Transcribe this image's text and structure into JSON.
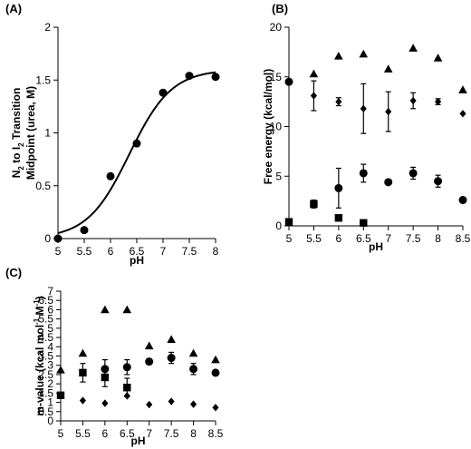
{
  "chart_data": [
    {
      "panel_label": "(A)",
      "type": "scatter",
      "xlabel": "pH",
      "ylabel_parts": [
        "N",
        "2",
        " to I",
        "2",
        " Transition"
      ],
      "ylabel_line2": "Midpoint (urea, M)",
      "xlim": [
        5,
        8
      ],
      "ylim": [
        0,
        2
      ],
      "xticks": [
        "5",
        "5.5",
        "6",
        "6.5",
        "7",
        "7.5",
        "8"
      ],
      "yticks": [
        "0",
        "0.5",
        "1",
        "1.5",
        "2"
      ],
      "series": [
        {
          "marker": "circle",
          "points": [
            [
              5,
              0.0
            ],
            [
              5.5,
              0.08
            ],
            [
              6,
              0.59
            ],
            [
              6.5,
              0.9
            ],
            [
              7,
              1.38
            ],
            [
              7.5,
              1.54
            ],
            [
              8,
              1.53
            ]
          ]
        }
      ],
      "fit_curve": {
        "shape": "sigmoid",
        "low": 0.0,
        "high": 1.6,
        "midpoint_pH": 6.36,
        "slope": 2.5
      }
    },
    {
      "panel_label": "(B)",
      "type": "scatter",
      "xlabel": "pH",
      "ylabel": "Free energy (kcal/mol)",
      "xlim": [
        5,
        8.5
      ],
      "ylim": [
        0,
        20
      ],
      "xticks": [
        "5",
        "5.5",
        "6",
        "6.5",
        "7",
        "7.5",
        "8",
        "8.5"
      ],
      "yticks": [
        "0",
        "5",
        "10",
        "15",
        "20"
      ],
      "series": [
        {
          "marker": "triangle",
          "points": [
            [
              5.5,
              15.3
            ],
            [
              6,
              17.1
            ],
            [
              6.5,
              17.3
            ],
            [
              7,
              15.8
            ],
            [
              7.5,
              17.9
            ],
            [
              8,
              16.9
            ],
            [
              8.5,
              13.7
            ]
          ],
          "errors": []
        },
        {
          "marker": "diamond",
          "points": [
            [
              5,
              14.6
            ],
            [
              5.5,
              13.1
            ],
            [
              6,
              12.5
            ],
            [
              6.5,
              11.8
            ],
            [
              7,
              11.5
            ],
            [
              7.5,
              12.6
            ],
            [
              8,
              12.5
            ],
            [
              8.5,
              11.3
            ]
          ],
          "errors": [
            0,
            1.5,
            0.4,
            2.5,
            2.0,
            0.8,
            0.3,
            0
          ]
        },
        {
          "marker": "circle",
          "points": [
            [
              5,
              14.5
            ],
            [
              6,
              3.8
            ],
            [
              6.5,
              5.3
            ],
            [
              7,
              4.4
            ],
            [
              7.5,
              5.3
            ],
            [
              8,
              4.5
            ],
            [
              8.5,
              2.6
            ]
          ],
          "errors": [
            0,
            2.0,
            0.9,
            0,
            0.6,
            0.6,
            0
          ]
        },
        {
          "marker": "square",
          "points": [
            [
              5,
              0.4
            ],
            [
              5.5,
              2.2
            ],
            [
              6,
              0.8
            ],
            [
              6.5,
              0.3
            ]
          ],
          "errors": [
            0,
            0.4,
            0,
            0
          ]
        }
      ]
    },
    {
      "panel_label": "(C)",
      "type": "scatter",
      "xlabel": "pH",
      "ylabel_parts": [
        "m-value (kcal mol",
        "-1",
        " M",
        "-1",
        ")"
      ],
      "xlim": [
        5,
        8.5
      ],
      "ylim": [
        0,
        7
      ],
      "xticks": [
        "5",
        "5.5",
        "6",
        "6.5",
        "7",
        "7.5",
        "8",
        "8.5"
      ],
      "yticks": [
        "0",
        "0.5",
        "1",
        "1.5",
        "2",
        "2.5",
        "3",
        "3.5",
        "4",
        "4.5",
        "5",
        "5.5",
        "6",
        "6.5",
        "7"
      ],
      "series": [
        {
          "marker": "triangle",
          "points": [
            [
              5,
              2.75
            ],
            [
              5.5,
              3.65
            ],
            [
              6,
              6.0
            ],
            [
              6.5,
              6.0
            ],
            [
              7,
              4.05
            ],
            [
              7.5,
              4.4
            ],
            [
              8,
              3.65
            ],
            [
              8.5,
              3.3
            ]
          ],
          "errors": []
        },
        {
          "marker": "circle",
          "points": [
            [
              6,
              2.8
            ],
            [
              6.5,
              2.9
            ],
            [
              7,
              3.2
            ],
            [
              7.5,
              3.4
            ],
            [
              8,
              2.8
            ],
            [
              8.5,
              2.6
            ]
          ],
          "errors": [
            0.5,
            0.4,
            0.15,
            0.3,
            0.3,
            0
          ]
        },
        {
          "marker": "square",
          "points": [
            [
              5,
              1.38
            ],
            [
              5.5,
              2.6
            ],
            [
              6,
              2.35
            ],
            [
              6.5,
              1.8
            ]
          ],
          "errors": [
            0,
            0.5,
            0.5,
            0.5
          ]
        },
        {
          "marker": "diamond",
          "points": [
            [
              5.5,
              1.1
            ],
            [
              6,
              0.95
            ],
            [
              6.5,
              1.35
            ],
            [
              7,
              0.88
            ],
            [
              7.5,
              1.05
            ],
            [
              8,
              0.9
            ],
            [
              8.5,
              0.72
            ]
          ],
          "errors": []
        }
      ]
    }
  ]
}
